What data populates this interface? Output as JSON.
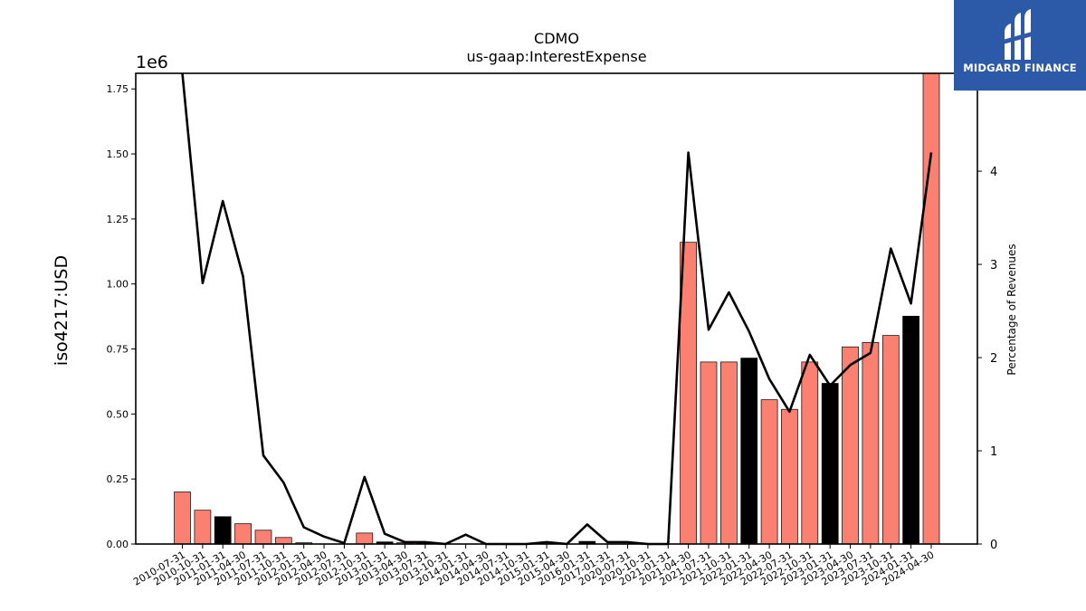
{
  "chart_data": {
    "type": "bar",
    "title": "CDMO",
    "subtitle": "us-gaap:InterestExpense",
    "ylabel": "iso4217:USD",
    "y_offset_label": "1e6",
    "y2label": "Percentage of Revenues",
    "ylim": [
      0,
      1810000
    ],
    "y2lim": [
      0,
      5.05
    ],
    "yticks": [
      "0.00",
      "0.25",
      "0.50",
      "0.75",
      "1.00",
      "1.25",
      "1.50",
      "1.75"
    ],
    "ytick_values": [
      0,
      0.25,
      0.5,
      0.75,
      1.0,
      1.25,
      1.5,
      1.75
    ],
    "y2ticks": [
      "0",
      "1",
      "2",
      "3",
      "4"
    ],
    "y2tick_values": [
      0,
      1,
      2,
      3,
      4
    ],
    "categories": [
      "2010-07-31",
      "2010-10-31",
      "2011-01-31",
      "2011-04-30",
      "2011-07-31",
      "2011-10-31",
      "2012-01-31",
      "2012-04-30",
      "2012-07-31",
      "2012-10-31",
      "2013-01-31",
      "2013-04-30",
      "2013-07-31",
      "2013-10-31",
      "2014-01-31",
      "2014-04-30",
      "2014-07-31",
      "2014-10-31",
      "2015-01-31",
      "2015-04-30",
      "2016-01-31",
      "2017-01-31",
      "2020-07-31",
      "2020-10-31",
      "2021-01-31",
      "2021-04-30",
      "2021-07-31",
      "2021-10-31",
      "2022-01-31",
      "2022-04-30",
      "2022-07-31",
      "2022-10-31",
      "2023-01-31",
      "2023-04-30",
      "2023-07-31",
      "2023-10-31",
      "2024-01-31",
      "2024-04-30"
    ],
    "series": [
      {
        "kind": "bar",
        "values": [
          200000,
          130000,
          105000,
          78000,
          53000,
          25000,
          5000,
          0,
          0,
          42000,
          8000,
          5000,
          3000,
          0,
          0,
          0,
          0,
          0,
          0,
          0,
          10000,
          0,
          0,
          0,
          0,
          1160000,
          700000,
          700000,
          715000,
          555000,
          518000,
          700000,
          618000,
          758000,
          775000,
          802000,
          876000,
          1810000
        ],
        "colors": [
          "#fa8072",
          "#fa8072",
          "#000000",
          "#fa8072",
          "#fa8072",
          "#fa8072",
          "#fa8072",
          "#fa8072",
          "#fa8072",
          "#fa8072",
          "#000000",
          "#fa8072",
          "#fa8072",
          "#fa8072",
          "#fa8072",
          "#fa8072",
          "#fa8072",
          "#fa8072",
          "#fa8072",
          "#fa8072",
          "#000000",
          "#fa8072",
          "#fa8072",
          "#fa8072",
          "#fa8072",
          "#fa8072",
          "#fa8072",
          "#fa8072",
          "#000000",
          "#fa8072",
          "#fa8072",
          "#fa8072",
          "#000000",
          "#fa8072",
          "#fa8072",
          "#fa8072",
          "#000000",
          "#fa8072"
        ]
      },
      {
        "kind": "line",
        "axis": "right",
        "color": "#000000",
        "values": [
          5.2,
          2.8,
          3.68,
          2.87,
          0.95,
          0.66,
          0.18,
          0.08,
          0.01,
          0.72,
          0.11,
          0.02,
          0.02,
          0.0,
          0.1,
          0.0,
          0.0,
          0.0,
          0.02,
          0.0,
          0.21,
          0.02,
          0.02,
          0.0,
          0.0,
          4.2,
          2.3,
          2.7,
          2.28,
          1.77,
          1.42,
          2.03,
          1.7,
          1.92,
          2.05,
          3.17,
          2.58,
          4.2
        ]
      }
    ],
    "grid": false,
    "legend": "none"
  },
  "logo": {
    "text": "MIDGARD FINANCE"
  }
}
